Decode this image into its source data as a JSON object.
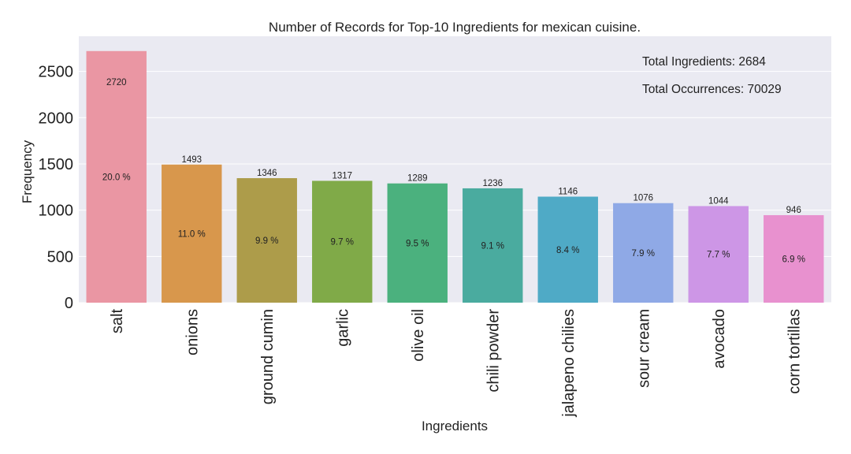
{
  "chart_data": {
    "type": "bar",
    "title": "Number of Records for Top-10 Ingredients for mexican cuisine.",
    "xlabel": "Ingredients",
    "ylabel": "Frequency",
    "ylim": [
      0,
      2880
    ],
    "yticks": [
      0,
      500,
      1000,
      1500,
      2000,
      2500
    ],
    "grid": true,
    "categories": [
      "salt",
      "onions",
      "ground cumin",
      "garlic",
      "olive oil",
      "chili powder",
      "jalapeno chilies",
      "sour cream",
      "avocado",
      "corn tortillas"
    ],
    "values": [
      2720,
      1493,
      1346,
      1317,
      1289,
      1236,
      1146,
      1076,
      1044,
      946
    ],
    "percent_labels": [
      "20.0 %",
      "11.0 %",
      "9.9 %",
      "9.7 %",
      "9.5 %",
      "9.1 %",
      "8.4 %",
      "7.9 %",
      "7.7 %",
      "6.9 %"
    ],
    "colors": [
      "#ea96a3",
      "#d8974c",
      "#ad9c4a",
      "#80aa48",
      "#4bb17e",
      "#4aab9f",
      "#4faac6",
      "#8fa9e6",
      "#cd96e6",
      "#e891cf"
    ],
    "annotations": [
      "Total Ingredients: 2684",
      "Total Occurrences: 70029"
    ],
    "background": "#eaeaf2"
  }
}
